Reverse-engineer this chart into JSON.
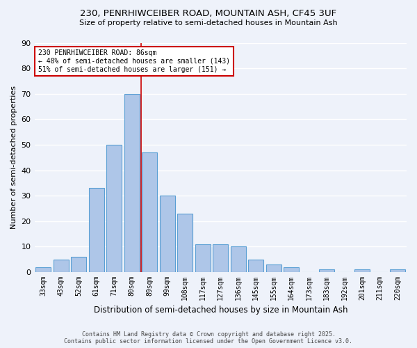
{
  "title1": "230, PENRHIWCEIBER ROAD, MOUNTAIN ASH, CF45 3UF",
  "title2": "Size of property relative to semi-detached houses in Mountain Ash",
  "xlabel": "Distribution of semi-detached houses by size in Mountain Ash",
  "ylabel": "Number of semi-detached properties",
  "categories": [
    "33sqm",
    "43sqm",
    "52sqm",
    "61sqm",
    "71sqm",
    "80sqm",
    "89sqm",
    "99sqm",
    "108sqm",
    "117sqm",
    "127sqm",
    "136sqm",
    "145sqm",
    "155sqm",
    "164sqm",
    "173sqm",
    "183sqm",
    "192sqm",
    "201sqm",
    "211sqm",
    "220sqm"
  ],
  "values": [
    2,
    5,
    6,
    33,
    50,
    70,
    47,
    30,
    23,
    11,
    11,
    10,
    5,
    3,
    2,
    0,
    1,
    0,
    1,
    0,
    1
  ],
  "bar_color": "#aec6e8",
  "bar_edge_color": "#5a9fd4",
  "property_bin_index": 5,
  "annotation_line1": "230 PENRHIWCEIBER ROAD: 86sqm",
  "annotation_line2": "← 48% of semi-detached houses are smaller (143)",
  "annotation_line3": "51% of semi-detached houses are larger (151) →",
  "annotation_box_color": "#ffffff",
  "annotation_box_edge": "#cc0000",
  "vline_color": "#cc0000",
  "background_color": "#eef2fa",
  "grid_color": "#ffffff",
  "ylim": [
    0,
    90
  ],
  "yticks": [
    0,
    10,
    20,
    30,
    40,
    50,
    60,
    70,
    80,
    90
  ],
  "footer1": "Contains HM Land Registry data © Crown copyright and database right 2025.",
  "footer2": "Contains public sector information licensed under the Open Government Licence v3.0."
}
